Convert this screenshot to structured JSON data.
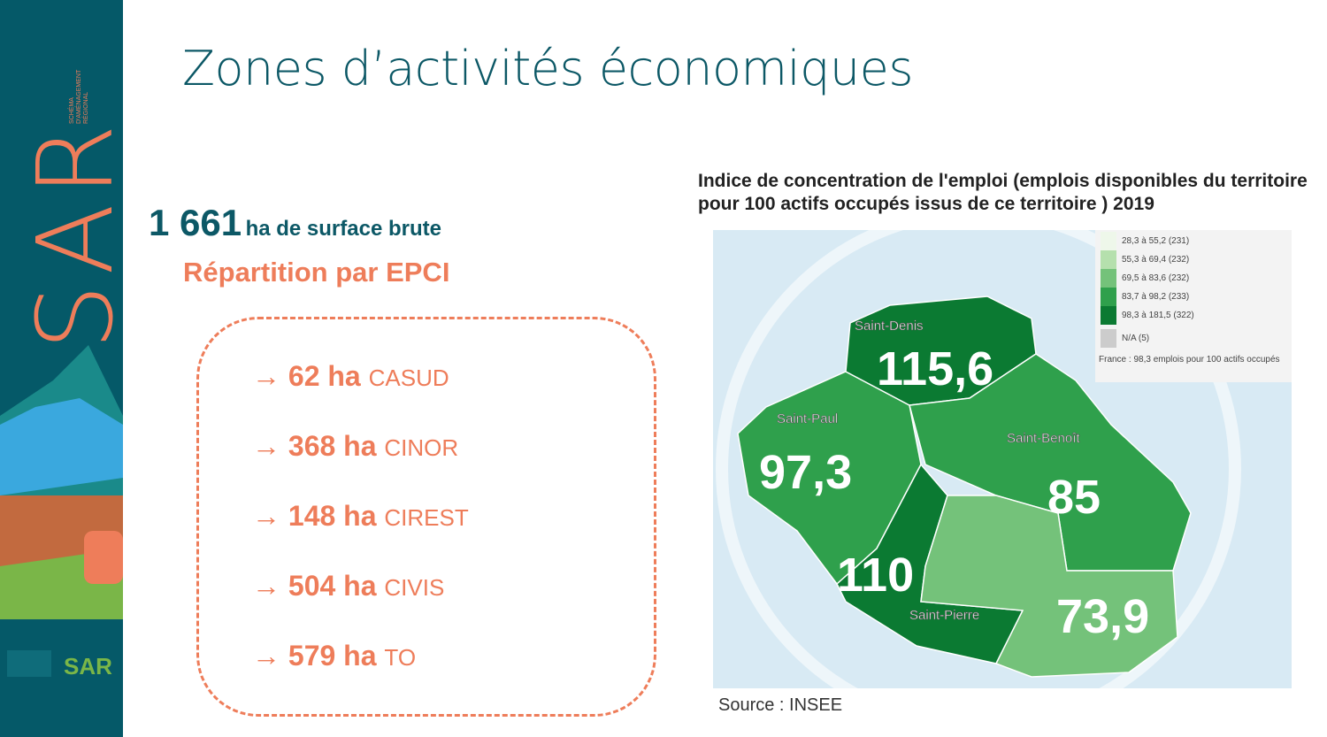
{
  "sidebar": {
    "logo": "SAR",
    "subtitle": "SCHÉMA D'AMÉNAGEMENT RÉGIONAL"
  },
  "title": "Zones d’activités économiques",
  "surface": {
    "value": "1 661",
    "label": "ha de surface brute"
  },
  "repartition": "Répartition par EPCI",
  "items": [
    {
      "arrow": "→",
      "value": "62 ha",
      "epci": "CASUD"
    },
    {
      "arrow": "→",
      "value": "368 ha",
      "epci": "CINOR"
    },
    {
      "arrow": "→",
      "value": "148 ha",
      "epci": "CIREST"
    },
    {
      "arrow": "→",
      "value": "504 ha",
      "epci": "CIVIS"
    },
    {
      "arrow": "→",
      "value": "579 ha",
      "epci": "TO"
    }
  ],
  "chart": {
    "title": "Indice de concentration de l'emploi (emplois disponibles du territoire pour 100 actifs occupés issus de ce territoire ) 2019",
    "regions": [
      {
        "name": "Saint-Denis",
        "value": "115,6",
        "color": "#0b7a32"
      },
      {
        "name": "Saint-Paul",
        "value": "97,3",
        "color": "#2fa04c"
      },
      {
        "name": "Saint-Benoît",
        "value": "85",
        "color": "#2fa04c"
      },
      {
        "name": "",
        "value": "110",
        "color": "#0b7a32"
      },
      {
        "name": "Saint-Pierre",
        "value": "73,9",
        "color": "#74c27a"
      }
    ],
    "legend": [
      {
        "label": "28,3 à 55,2 (231)",
        "color": "#eef7ea"
      },
      {
        "label": "55,3 à 69,4 (232)",
        "color": "#b5e0ad"
      },
      {
        "label": "69,5 à 83,6 (232)",
        "color": "#74c27a"
      },
      {
        "label": "83,7 à 98,2 (233)",
        "color": "#2fa04c"
      },
      {
        "label": "98,3 à 181,5 (322)",
        "color": "#0b7a32"
      },
      {
        "label": "N/A (5)",
        "color": "#cccccc"
      }
    ],
    "note": "France : 98,3 emplois pour 100 actifs occupés",
    "source": "Source : INSEE"
  }
}
